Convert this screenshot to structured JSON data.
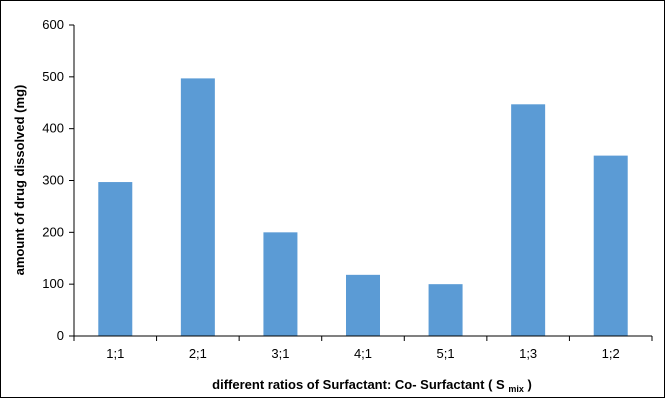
{
  "chart_data": {
    "type": "bar",
    "title": "",
    "xlabel": "different ratios of Surfactant: Co- Surfactant",
    "xlabel_paren_main": "S",
    "xlabel_paren_sub": "mix",
    "ylabel": "amount of drug dissolved  (mg)",
    "categories": [
      "1;1",
      "2;1",
      "3;1",
      "4;1",
      "5;1",
      "1;3",
      "1;2"
    ],
    "values": [
      297,
      497,
      200,
      118,
      100,
      447,
      348
    ],
    "ylim": [
      0,
      600
    ],
    "yticks": [
      0,
      100,
      200,
      300,
      400,
      500,
      600
    ],
    "bar_color": "#5b9bd5",
    "grid": false,
    "legend": "none"
  }
}
